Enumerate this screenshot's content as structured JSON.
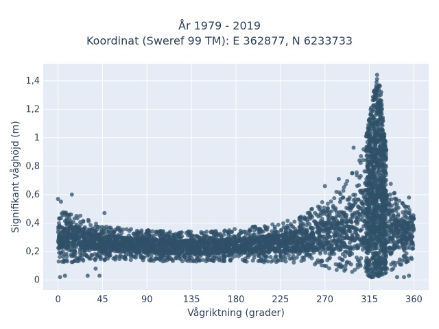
{
  "chart_data": {
    "type": "scatter",
    "title_line1": "År 1979 - 2019",
    "title_line2": "Koordinat (Sweref 99 TM): E 362877, N 6233733",
    "xlabel": "Vågriktning (grader)",
    "ylabel": "Signifikant våghöjd (m)",
    "xlim": [
      -15,
      375
    ],
    "ylim": [
      -0.07,
      1.52
    ],
    "xticks": [
      0,
      45,
      90,
      135,
      180,
      225,
      270,
      315,
      360
    ],
    "yticks": [
      0,
      0.2,
      0.4,
      0.6,
      0.8,
      1,
      1.2,
      1.4
    ],
    "ytick_labels": [
      "0",
      "0,2",
      "0,4",
      "0,6",
      "0,8",
      "1",
      "1,2",
      "1,4"
    ],
    "marker_color": "#2f5168",
    "plot_bg": "#e5ecf6",
    "grid": true,
    "envelope": {
      "x": [
        0,
        10,
        20,
        45,
        90,
        135,
        180,
        225,
        250,
        270,
        290,
        300,
        310,
        315,
        320,
        323,
        326,
        330,
        335,
        340,
        350,
        360
      ],
      "y_low": [
        0.12,
        0.12,
        0.13,
        0.14,
        0.13,
        0.13,
        0.13,
        0.12,
        0.1,
        0.08,
        0.06,
        0.05,
        0.03,
        0.02,
        0.01,
        0.01,
        0.02,
        0.04,
        0.06,
        0.08,
        0.1,
        0.14
      ],
      "y_high": [
        0.5,
        0.48,
        0.46,
        0.38,
        0.35,
        0.34,
        0.36,
        0.4,
        0.47,
        0.56,
        0.67,
        0.78,
        0.95,
        1.15,
        1.35,
        1.46,
        1.35,
        1.05,
        0.78,
        0.62,
        0.54,
        0.5
      ],
      "y_center": [
        0.3,
        0.3,
        0.3,
        0.26,
        0.24,
        0.23,
        0.24,
        0.26,
        0.28,
        0.31,
        0.35,
        0.38,
        0.44,
        0.5,
        0.56,
        0.6,
        0.55,
        0.45,
        0.38,
        0.34,
        0.32,
        0.3
      ]
    },
    "outliers": [
      {
        "x": 0,
        "y": 0.57
      },
      {
        "x": 3,
        "y": 0.55
      },
      {
        "x": 14,
        "y": 0.6
      },
      {
        "x": 9,
        "y": 0.46
      },
      {
        "x": 47,
        "y": 0.47
      },
      {
        "x": 2,
        "y": 0.02
      },
      {
        "x": 7,
        "y": 0.03
      },
      {
        "x": 30,
        "y": 0.03
      },
      {
        "x": 42,
        "y": 0.03
      },
      {
        "x": 38,
        "y": 0.08
      },
      {
        "x": 270,
        "y": 0.66
      },
      {
        "x": 284,
        "y": 0.71
      },
      {
        "x": 299,
        "y": 0.93
      },
      {
        "x": 305,
        "y": 0.84
      },
      {
        "x": 327,
        "y": 1.32
      },
      {
        "x": 336,
        "y": 0.6
      },
      {
        "x": 355,
        "y": 0.58
      },
      {
        "x": 343,
        "y": 0.02
      },
      {
        "x": 350,
        "y": 0.02
      },
      {
        "x": 355,
        "y": 0.03
      }
    ]
  }
}
